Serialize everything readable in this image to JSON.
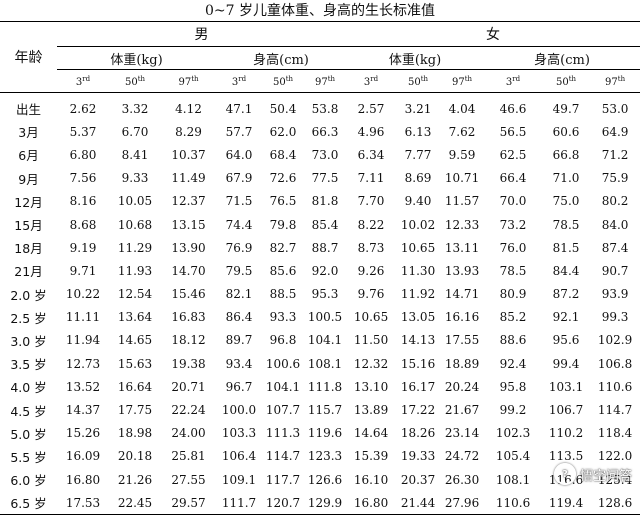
{
  "title": "0~7 岁儿童体重、身高的生长标准值",
  "header": {
    "age_label": "年龄",
    "male": "男",
    "female": "女",
    "weight": "体重(kg)",
    "height": "身高(cm)",
    "percentiles": [
      {
        "num": "3",
        "sup": "rd"
      },
      {
        "num": "50",
        "sup": "th"
      },
      {
        "num": "97",
        "sup": "th"
      }
    ]
  },
  "rows": [
    {
      "age": "出生",
      "m_w": [
        "2.62",
        "3.32",
        "4.12"
      ],
      "m_h": [
        "47.1",
        "50.4",
        "53.8"
      ],
      "f_w": [
        "2.57",
        "3.21",
        "4.04"
      ],
      "f_h": [
        "46.6",
        "49.7",
        "53.0"
      ]
    },
    {
      "age": "3月",
      "m_w": [
        "5.37",
        "6.70",
        "8.29"
      ],
      "m_h": [
        "57.7",
        "62.0",
        "66.3"
      ],
      "f_w": [
        "4.96",
        "6.13",
        "7.62"
      ],
      "f_h": [
        "56.5",
        "60.6",
        "64.9"
      ]
    },
    {
      "age": "6月",
      "m_w": [
        "6.80",
        "8.41",
        "10.37"
      ],
      "m_h": [
        "64.0",
        "68.4",
        "73.0"
      ],
      "f_w": [
        "6.34",
        "7.77",
        "9.59"
      ],
      "f_h": [
        "62.5",
        "66.8",
        "71.2"
      ]
    },
    {
      "age": "9月",
      "m_w": [
        "7.56",
        "9.33",
        "11.49"
      ],
      "m_h": [
        "67.9",
        "72.6",
        "77.5"
      ],
      "f_w": [
        "7.11",
        "8.69",
        "10.71"
      ],
      "f_h": [
        "66.4",
        "71.0",
        "75.9"
      ]
    },
    {
      "age": "12月",
      "m_w": [
        "8.16",
        "10.05",
        "12.37"
      ],
      "m_h": [
        "71.5",
        "76.5",
        "81.8"
      ],
      "f_w": [
        "7.70",
        "9.40",
        "11.57"
      ],
      "f_h": [
        "70.0",
        "75.0",
        "80.2"
      ]
    },
    {
      "age": "15月",
      "m_w": [
        "8.68",
        "10.68",
        "13.15"
      ],
      "m_h": [
        "74.4",
        "79.8",
        "85.4"
      ],
      "f_w": [
        "8.22",
        "10.02",
        "12.33"
      ],
      "f_h": [
        "73.2",
        "78.5",
        "84.0"
      ]
    },
    {
      "age": "18月",
      "m_w": [
        "9.19",
        "11.29",
        "13.90"
      ],
      "m_h": [
        "76.9",
        "82.7",
        "88.7"
      ],
      "f_w": [
        "8.73",
        "10.65",
        "13.11"
      ],
      "f_h": [
        "76.0",
        "81.5",
        "87.4"
      ]
    },
    {
      "age": "21月",
      "m_w": [
        "9.71",
        "11.93",
        "14.70"
      ],
      "m_h": [
        "79.5",
        "85.6",
        "92.0"
      ],
      "f_w": [
        "9.26",
        "11.30",
        "13.93"
      ],
      "f_h": [
        "78.5",
        "84.4",
        "90.7"
      ]
    },
    {
      "age": "2.0 岁",
      "m_w": [
        "10.22",
        "12.54",
        "15.46"
      ],
      "m_h": [
        "82.1",
        "88.5",
        "95.3"
      ],
      "f_w": [
        "9.76",
        "11.92",
        "14.71"
      ],
      "f_h": [
        "80.9",
        "87.2",
        "93.9"
      ]
    },
    {
      "age": "2.5 岁",
      "m_w": [
        "11.11",
        "13.64",
        "16.83"
      ],
      "m_h": [
        "86.4",
        "93.3",
        "100.5"
      ],
      "f_w": [
        "10.65",
        "13.05",
        "16.16"
      ],
      "f_h": [
        "85.2",
        "92.1",
        "99.3"
      ]
    },
    {
      "age": "3.0 岁",
      "m_w": [
        "11.94",
        "14.65",
        "18.12"
      ],
      "m_h": [
        "89.7",
        "96.8",
        "104.1"
      ],
      "f_w": [
        "11.50",
        "14.13",
        "17.55"
      ],
      "f_h": [
        "88.6",
        "95.6",
        "102.9"
      ]
    },
    {
      "age": "3.5 岁",
      "m_w": [
        "12.73",
        "15.63",
        "19.38"
      ],
      "m_h": [
        "93.4",
        "100.6",
        "108.1"
      ],
      "f_w": [
        "12.32",
        "15.16",
        "18.89"
      ],
      "f_h": [
        "92.4",
        "99.4",
        "106.8"
      ]
    },
    {
      "age": "4.0 岁",
      "m_w": [
        "13.52",
        "16.64",
        "20.71"
      ],
      "m_h": [
        "96.7",
        "104.1",
        "111.8"
      ],
      "f_w": [
        "13.10",
        "16.17",
        "20.24"
      ],
      "f_h": [
        "95.8",
        "103.1",
        "110.6"
      ]
    },
    {
      "age": "4.5 岁",
      "m_w": [
        "14.37",
        "17.75",
        "22.24"
      ],
      "m_h": [
        "100.0",
        "107.7",
        "115.7"
      ],
      "f_w": [
        "13.89",
        "17.22",
        "21.67"
      ],
      "f_h": [
        "99.2",
        "106.7",
        "114.7"
      ]
    },
    {
      "age": "5.0 岁",
      "m_w": [
        "15.26",
        "18.98",
        "24.00"
      ],
      "m_h": [
        "103.3",
        "111.3",
        "119.6"
      ],
      "f_w": [
        "14.64",
        "18.26",
        "23.14"
      ],
      "f_h": [
        "102.3",
        "110.2",
        "118.4"
      ]
    },
    {
      "age": "5.5 岁",
      "m_w": [
        "16.09",
        "20.18",
        "25.81"
      ],
      "m_h": [
        "106.4",
        "114.7",
        "123.3"
      ],
      "f_w": [
        "15.39",
        "19.33",
        "24.72"
      ],
      "f_h": [
        "105.4",
        "113.5",
        "122.0"
      ]
    },
    {
      "age": "6.0 岁",
      "m_w": [
        "16.80",
        "21.26",
        "27.55"
      ],
      "m_h": [
        "109.1",
        "117.7",
        "126.6"
      ],
      "f_w": [
        "16.10",
        "20.37",
        "26.30"
      ],
      "f_h": [
        "108.1",
        "116.6",
        "125.4"
      ]
    },
    {
      "age": "6.5 岁",
      "m_w": [
        "17.53",
        "22.45",
        "29.57"
      ],
      "m_h": [
        "111.7",
        "120.7",
        "129.9"
      ],
      "f_w": [
        "16.80",
        "21.44",
        "27.96"
      ],
      "f_h": [
        "110.6",
        "119.4",
        "128.6"
      ]
    }
  ],
  "watermark": {
    "text": "悟空问答",
    "icon": "wukong-logo-icon"
  }
}
